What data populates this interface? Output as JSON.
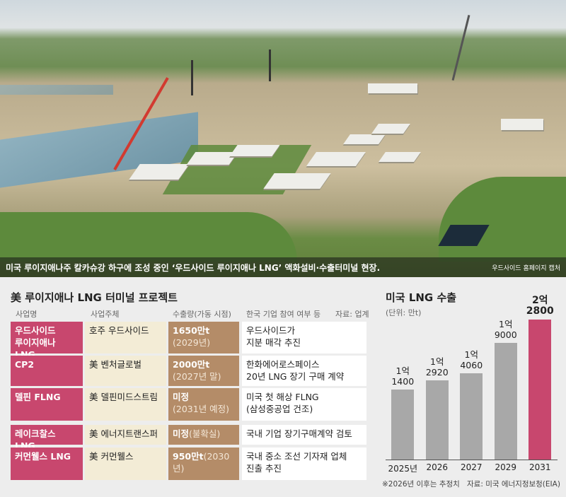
{
  "photo": {
    "caption": "미국 루이지애나주 칼카슈강 하구에 조성 중인 ‘우드사이드 루이지애나 LNG’ 액화설비·수출터미널 현장.",
    "credit": "우드사이드 홈페이지 캡처"
  },
  "table": {
    "title": "美 루이지애나 LNG 터미널 프로젝트",
    "headers": [
      "사업명",
      "사업주체",
      "수출량(가동 시점)",
      "한국 기업 참여 여부 등"
    ],
    "source": "자료: 업계",
    "rows": [
      {
        "name": "우드사이드\n루이지애나 LNG",
        "owner": "호주 우드사이드",
        "volume": "1650만t",
        "timing": "(2029년)",
        "korea": "우드사이드가\n지분 매각 추진"
      },
      {
        "name": "CP2",
        "owner": "美 벤처글로벌",
        "volume": "2000만t",
        "timing": "(2027년 말)",
        "korea": "한화에어로스페이스\n20년 LNG 장기 구매 계약"
      },
      {
        "name": "델핀 FLNG",
        "owner": "美 델핀미드스트림",
        "volume": "미정",
        "timing": "(2031년 예정)",
        "korea": "미국 첫 해상 FLNG\n(삼성중공업 건조)"
      },
      {
        "name": "레이크찰스 LNG",
        "owner": "美 에너지트랜스퍼",
        "volume": "미정",
        "timing": "(불확실)",
        "korea": "국내 기업 장기구매계약 검토"
      },
      {
        "name": "커먼웰스 LNG",
        "owner": "美 커먼웰스",
        "volume": "950만t",
        "timing": "(2030년)",
        "korea": "국내 중소 조선 기자재 업체\n진출 추진"
      }
    ]
  },
  "chart_data": {
    "type": "bar",
    "title": "미국 LNG 수출",
    "subtitle": "(단위: 만t)",
    "categories": [
      "2025년",
      "2026",
      "2027",
      "2029",
      "2031"
    ],
    "values": [
      11400,
      12920,
      14060,
      19000,
      22800
    ],
    "value_labels": [
      "1억\n1400",
      "1억\n2920",
      "1억\n4060",
      "1억\n9000",
      "2억\n2800"
    ],
    "colors": [
      "#a8a8a8",
      "#a8a8a8",
      "#a8a8a8",
      "#a8a8a8",
      "#c8476e"
    ],
    "ylim": [
      0,
      25000
    ],
    "note": "※2026년 이후는 추정치",
    "source": "자료: 미국 에너지정보청(EIA)"
  }
}
